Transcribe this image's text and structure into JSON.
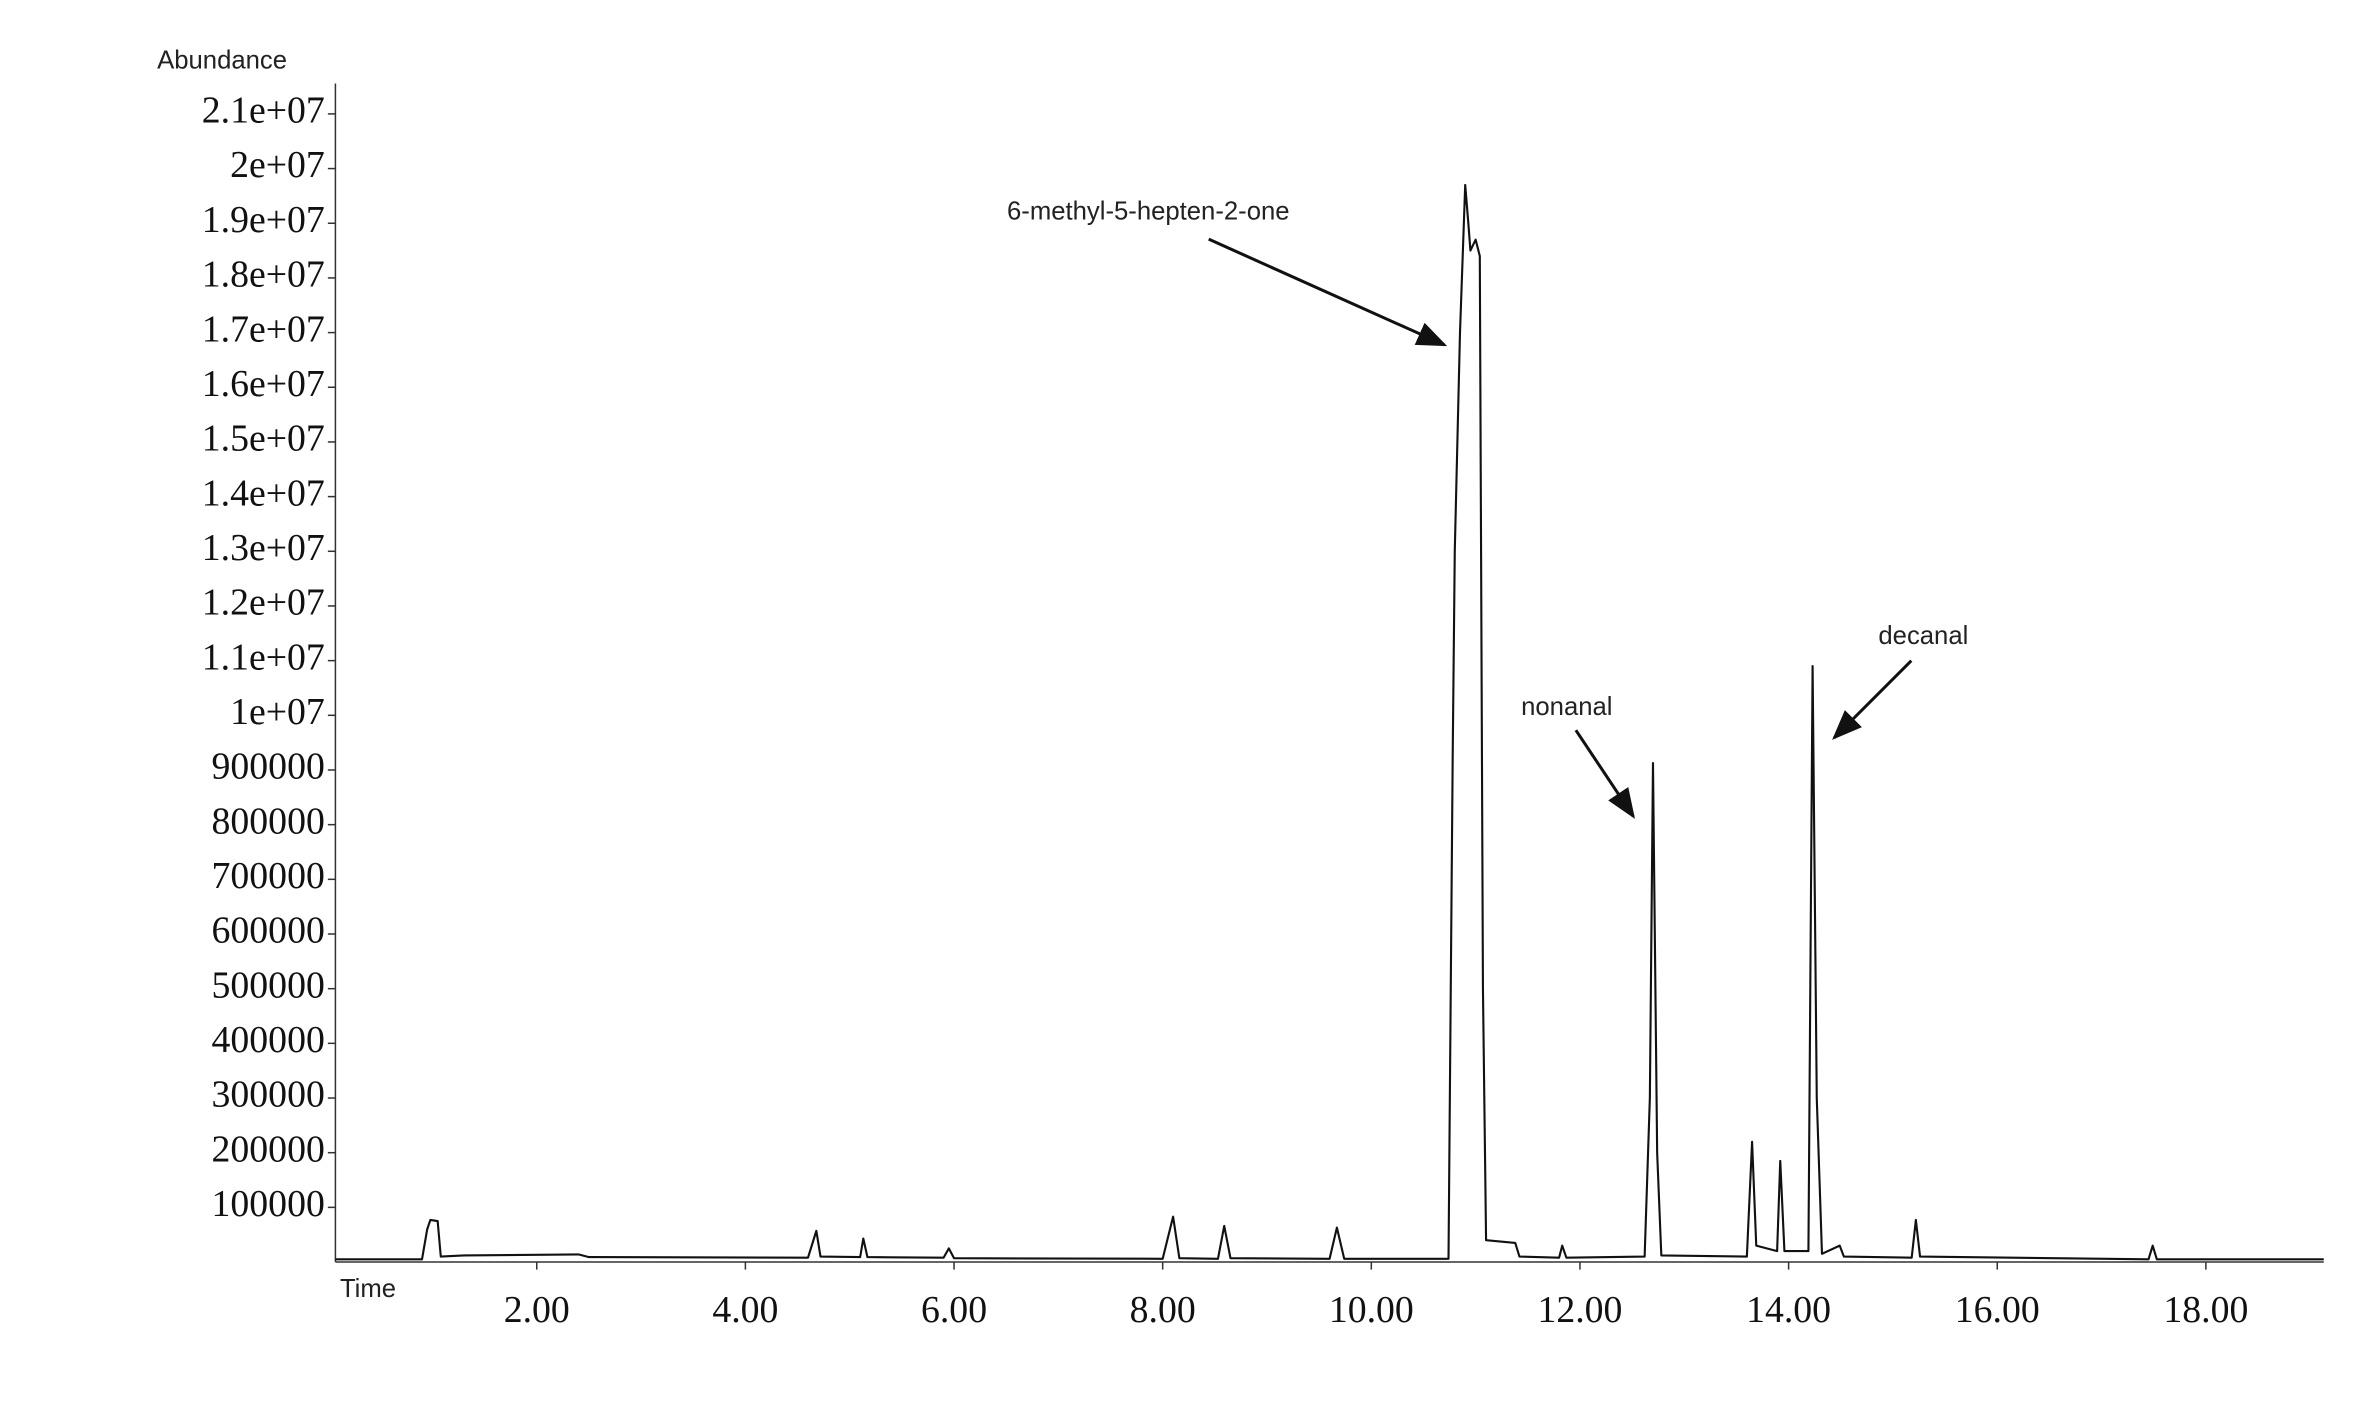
{
  "chart_data": {
    "type": "line",
    "y_label": "Abundance",
    "x_label": "Time",
    "annotations": [
      {
        "text": "6-methyl-5-hepten-2-one"
      },
      {
        "text": "nonanal"
      },
      {
        "text": "decanal"
      }
    ],
    "xlim": [
      0.07,
      19.13
    ],
    "xticks": [
      {
        "value": 2,
        "label": "2.00"
      },
      {
        "value": 4,
        "label": "4.00"
      },
      {
        "value": 6,
        "label": "6.00"
      },
      {
        "value": 8,
        "label": "8.00"
      },
      {
        "value": 10,
        "label": "10.00"
      },
      {
        "value": 12,
        "label": "12.00"
      },
      {
        "value": 14,
        "label": "14.00"
      },
      {
        "value": 16,
        "label": "16.00"
      },
      {
        "value": 18,
        "label": "18.00"
      }
    ],
    "ylim": [
      0,
      21500000
    ],
    "yticks": [
      100000,
      200000,
      300000,
      400000,
      500000,
      600000,
      700000,
      800000,
      900000,
      {
        "value": 10000000,
        "label": "1e+07"
      },
      {
        "value": 11000000,
        "label": "1.1e+07"
      },
      {
        "value": 12000000,
        "label": "1.2e+07"
      },
      {
        "value": 13000000,
        "label": "1.3e+07"
      },
      {
        "value": 14000000,
        "label": "1.4e+07"
      },
      {
        "value": 15000000,
        "label": "1.5e+07"
      },
      {
        "value": 16000000,
        "label": "1.6e+07"
      },
      {
        "value": 17000000,
        "label": "1.7e+07"
      },
      {
        "value": 18000000,
        "label": "1.8e+07"
      },
      {
        "value": 19000000,
        "label": "1.9e+07"
      },
      {
        "value": 20000000,
        "label": "2e+07"
      },
      {
        "value": 21000000,
        "label": "2.1e+07"
      }
    ],
    "series": [
      {
        "color": "#111111",
        "x": [
          0.07,
          0.9,
          0.95,
          0.98,
          1.05,
          1.08,
          1.3,
          2.4,
          2.5,
          4.6,
          4.68,
          4.72,
          5.1,
          5.13,
          5.17,
          5.9,
          5.95,
          6.0,
          8.0,
          8.1,
          8.16,
          8.53,
          8.59,
          8.65,
          9.6,
          9.67,
          9.74,
          10.74,
          10.78,
          10.8,
          10.85,
          10.9,
          10.93,
          10.95,
          11.0,
          11.04,
          11.07,
          11.1,
          11.38,
          11.42,
          11.8,
          11.83,
          11.87,
          12.62,
          12.67,
          12.7,
          12.74,
          12.78,
          13.6,
          13.65,
          13.69,
          13.89,
          13.92,
          13.96,
          14.19,
          14.23,
          14.27,
          14.32,
          14.49,
          14.53,
          15.18,
          15.22,
          15.26,
          17.45,
          17.49,
          17.53,
          19.13
        ],
        "values": [
          5000,
          5000,
          60000,
          77000,
          75000,
          10000,
          12000,
          14000,
          9000,
          8000,
          57000,
          10000,
          9000,
          43000,
          9000,
          8000,
          25000,
          7000,
          6000,
          83000,
          7000,
          6000,
          66000,
          7000,
          6000,
          63000,
          6000,
          6000,
          3000000,
          13000000,
          17000000,
          19700000,
          19000000,
          18500000,
          18700000,
          18400000,
          500000,
          40000,
          35000,
          10000,
          8000,
          30000,
          8000,
          10000,
          300000,
          2050000,
          200000,
          12000,
          10000,
          220000,
          30000,
          20000,
          185000,
          20000,
          20000,
          10900000,
          300000,
          15000,
          30000,
          10000,
          8000,
          77000,
          10000,
          5000,
          30000,
          5000,
          5000
        ]
      }
    ]
  }
}
